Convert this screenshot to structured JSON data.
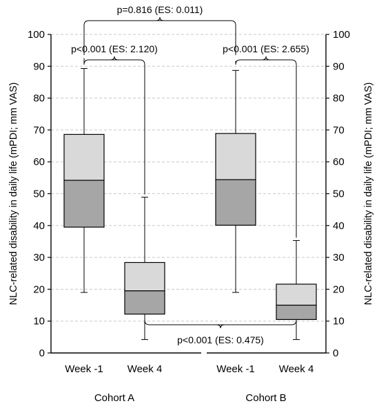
{
  "chart_data": {
    "type": "boxplot",
    "ylabel_left": "NLC-related disability in daily life (mPDI; mm VAS)",
    "ylabel_right": "NLC-related disability in daily life (mPDI; mm VAS)",
    "ylim": [
      0,
      100
    ],
    "yticks": [
      0,
      10,
      20,
      30,
      40,
      50,
      60,
      70,
      80,
      90,
      100
    ],
    "grid": true,
    "groups": [
      {
        "label": "Cohort A",
        "boxes": [
          {
            "label": "Week -1",
            "min": 19,
            "q1": 39.5,
            "median": 54.2,
            "q3": 68.6,
            "max": 89.3
          },
          {
            "label": "Week 4",
            "min": 4.2,
            "q1": 12.2,
            "median": 19.5,
            "q3": 28.4,
            "max": 48.9
          }
        ]
      },
      {
        "label": "Cohort B",
        "boxes": [
          {
            "label": "Week -1",
            "min": 19,
            "q1": 40.1,
            "median": 54.4,
            "q3": 68.9,
            "max": 88.7
          },
          {
            "label": "Week 4",
            "min": 4.2,
            "q1": 10.5,
            "median": 15,
            "q3": 21.6,
            "max": 35.3
          }
        ]
      }
    ],
    "annotations": [
      {
        "text": "p=0.816 (ES: 0.011)",
        "between": [
          "Cohort A Week -1",
          "Cohort B Week -1"
        ]
      },
      {
        "text": "p<0.001 (ES: 2.120)",
        "between": [
          "Cohort A Week -1",
          "Cohort A Week 4"
        ]
      },
      {
        "text": "p<0.001 (ES: 2.655)",
        "between": [
          "Cohort B Week -1",
          "Cohort B Week 4"
        ]
      },
      {
        "text": "p<0.001 (ES: 0.475)",
        "between": [
          "Cohort A Week 4",
          "Cohort B Week 4"
        ]
      }
    ],
    "colors": {
      "upper_box": "#d9d9d9",
      "lower_box": "#a6a6a6",
      "grid": "#c8c8c8",
      "line": "#000000"
    }
  }
}
